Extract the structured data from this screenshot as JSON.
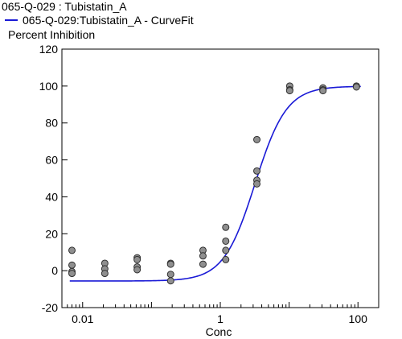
{
  "header": {
    "title": "065-Q-029  : Tubistatin_A",
    "legend_label": "065-Q-029:Tubistatin_A - CurveFit",
    "y_axis_label": "Percent Inhibition"
  },
  "colors": {
    "curve": "#1a1ad6",
    "point_fill": "#8f8f8f",
    "point_stroke": "#303030",
    "axis": "#000000"
  },
  "chart_data": {
    "type": "scatter",
    "title": "065-Q-029  : Tubistatin_A",
    "xlabel": "Conc",
    "ylabel": "Percent Inhibition",
    "x_scale": "log",
    "xlim": [
      0.005,
      200
    ],
    "ylim": [
      -20,
      120
    ],
    "x_ticks": [
      0.01,
      1,
      100
    ],
    "x_tick_labels": [
      "0.01",
      "1",
      "100"
    ],
    "y_ticks": [
      -20,
      0,
      20,
      40,
      60,
      80,
      100,
      120
    ],
    "y_tick_labels": [
      "-20",
      "0",
      "20",
      "40",
      "60",
      "80",
      "100",
      "120"
    ],
    "grid": false,
    "legend_position": "top-left",
    "series": [
      {
        "name": "065-Q-029:Tubistatin_A - CurveFit",
        "kind": "fit",
        "model": "4PL",
        "bottom": -5.6,
        "top": 99.9,
        "ec50": 3.2,
        "hill": 1.9
      },
      {
        "kind": "points",
        "points": [
          [
            0.007,
            11
          ],
          [
            0.007,
            3
          ],
          [
            0.007,
            -0.5
          ],
          [
            0.007,
            -1.5
          ],
          [
            0.021,
            4
          ],
          [
            0.021,
            1
          ],
          [
            0.021,
            -1.5
          ],
          [
            0.062,
            7
          ],
          [
            0.062,
            6
          ],
          [
            0.062,
            2
          ],
          [
            0.062,
            0.5
          ],
          [
            0.19,
            4
          ],
          [
            0.19,
            3.5
          ],
          [
            0.19,
            -2
          ],
          [
            0.19,
            -5.5
          ],
          [
            0.56,
            11
          ],
          [
            0.56,
            8
          ],
          [
            0.56,
            3.5
          ],
          [
            1.2,
            23.5
          ],
          [
            1.2,
            16
          ],
          [
            1.2,
            11
          ],
          [
            1.2,
            6
          ],
          [
            3.4,
            71
          ],
          [
            3.4,
            54
          ],
          [
            3.4,
            49
          ],
          [
            3.4,
            47
          ],
          [
            10.2,
            100
          ],
          [
            10.2,
            98
          ],
          [
            10.2,
            97.5
          ],
          [
            31,
            99
          ],
          [
            31,
            98
          ],
          [
            31,
            97.5
          ],
          [
            95,
            100
          ],
          [
            95,
            99.5
          ]
        ]
      }
    ]
  }
}
